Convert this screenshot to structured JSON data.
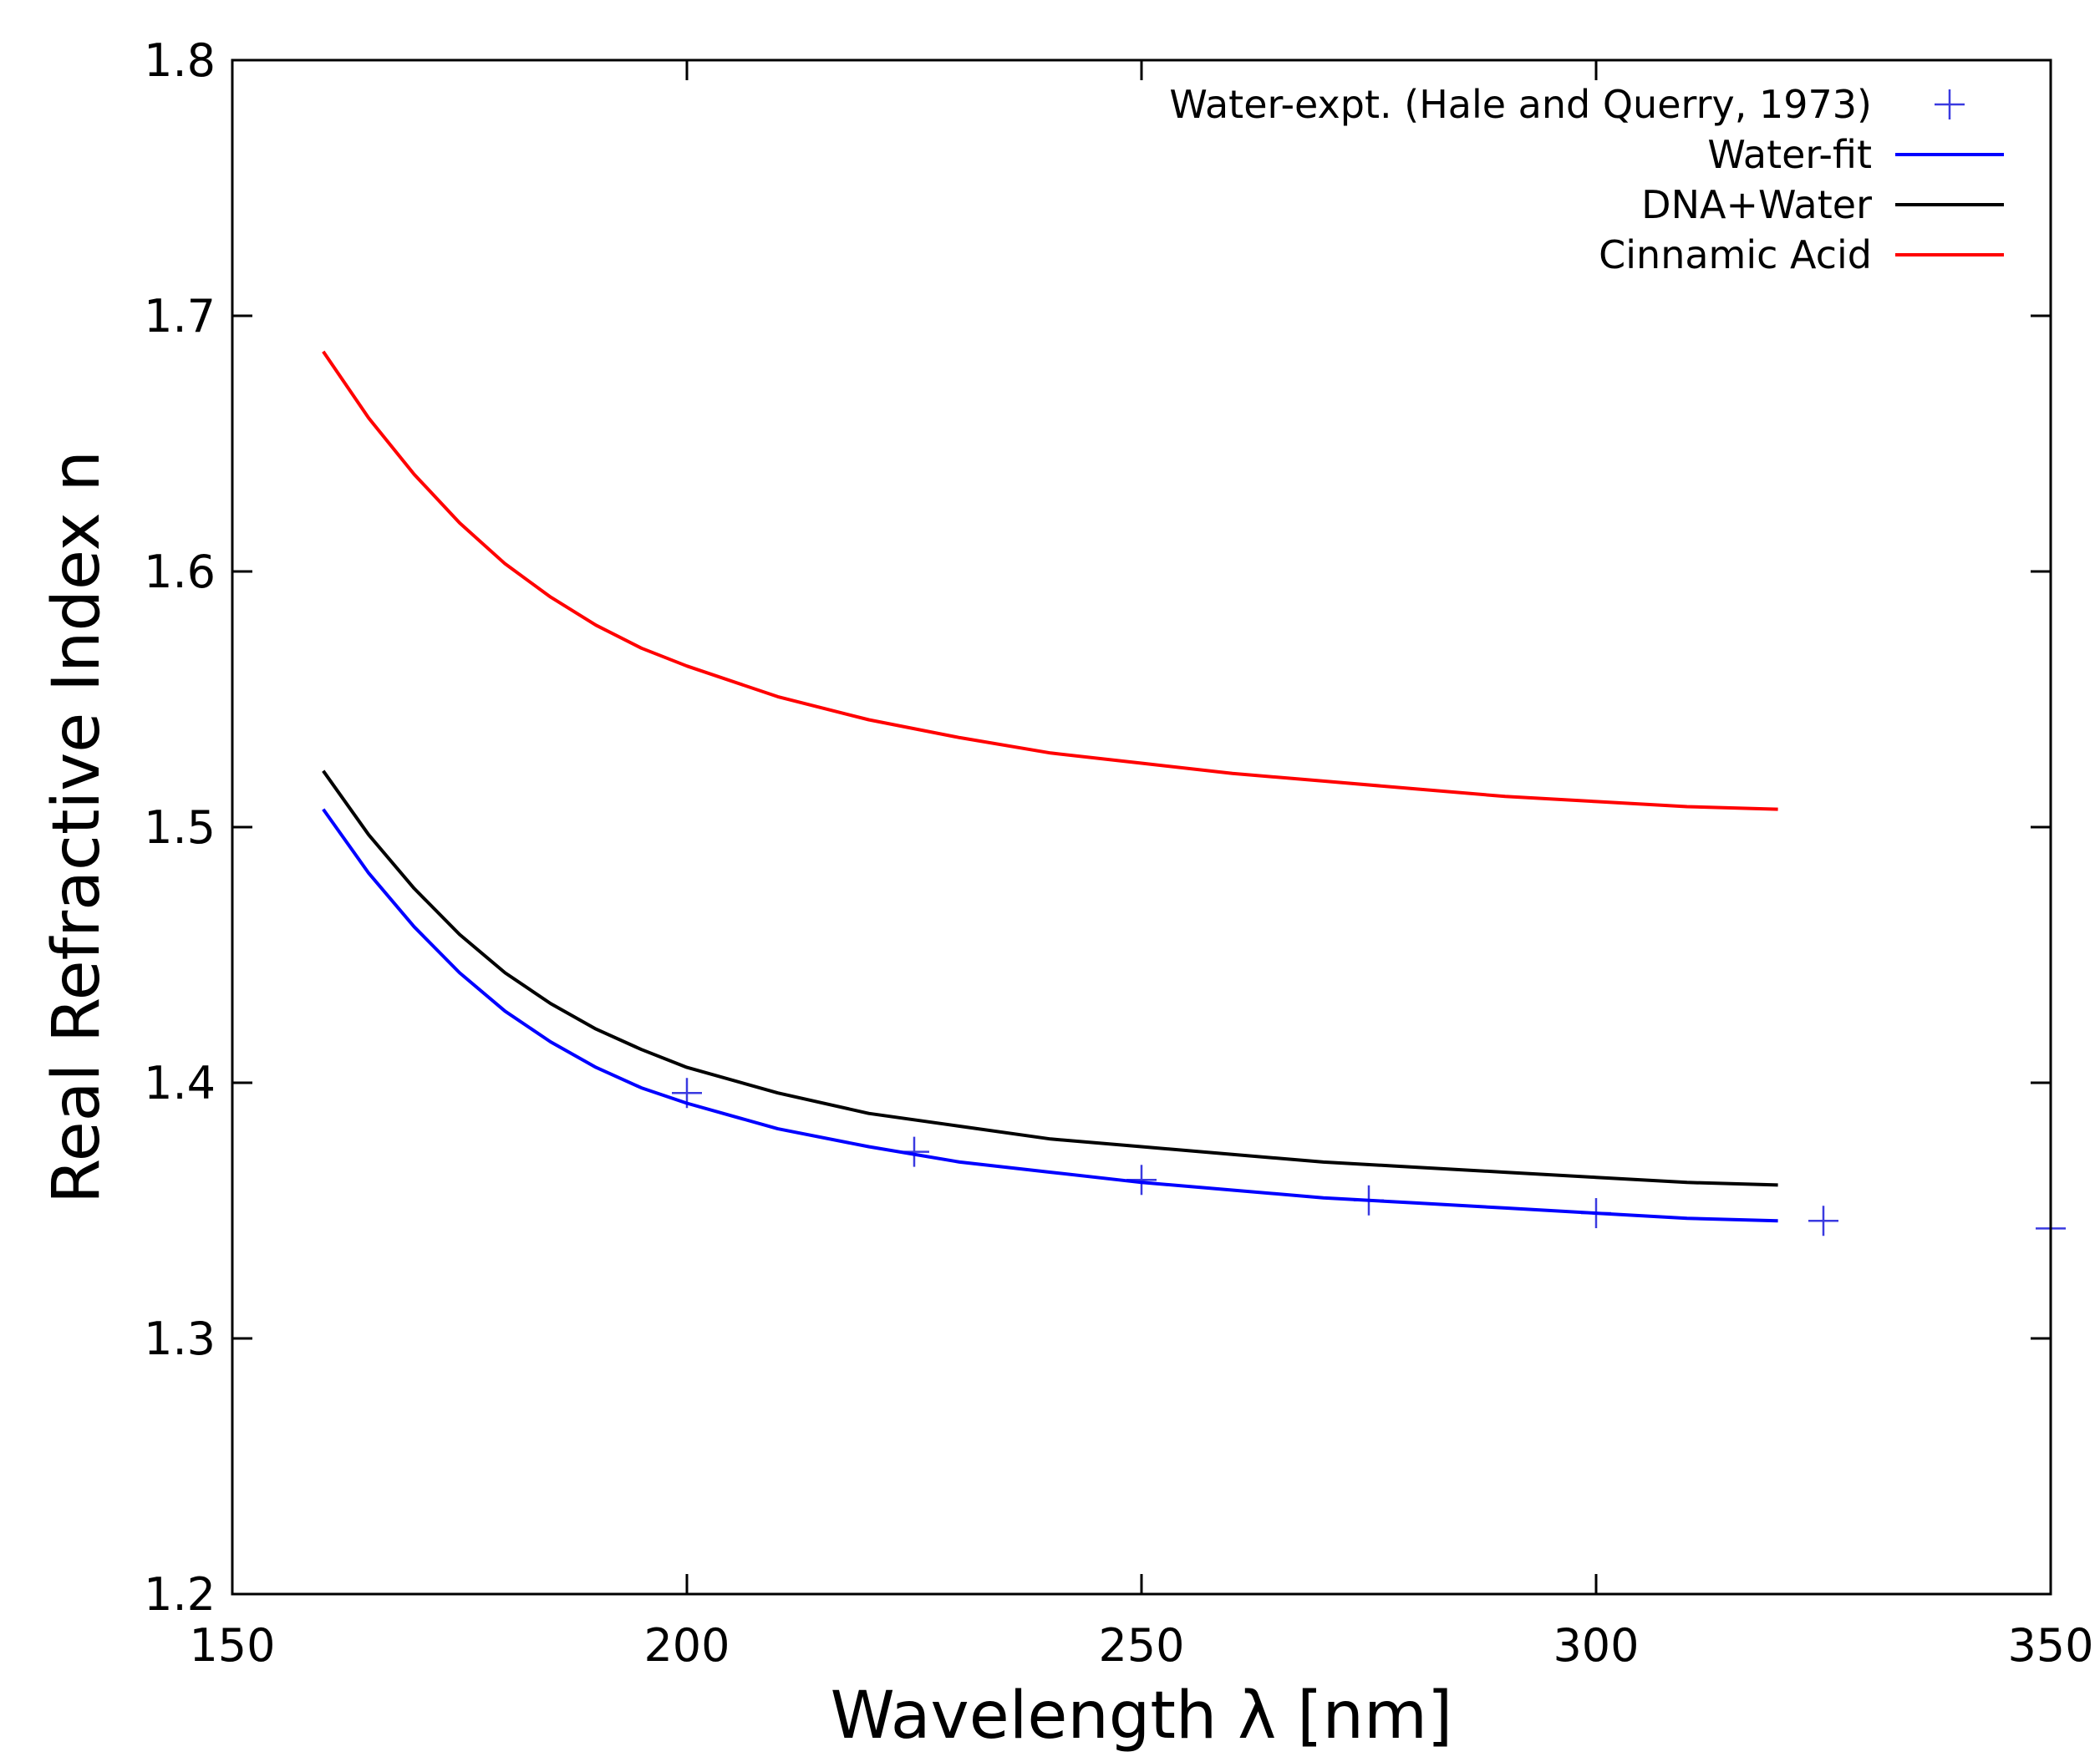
{
  "chart_data": {
    "type": "line",
    "title": "",
    "xlabel": "Wavelength λ [nm]",
    "ylabel": "Real Refractive Index n",
    "xlim": [
      150,
      350
    ],
    "ylim": [
      1.2,
      1.8
    ],
    "grid": false,
    "legend_position": "top-right",
    "x_ticks": [
      "150",
      "200",
      "250",
      "300",
      "350"
    ],
    "y_ticks": [
      "1.2",
      "1.3",
      "1.4",
      "1.5",
      "1.6",
      "1.7",
      "1.8"
    ],
    "x_tick_values": [
      150,
      200,
      250,
      300,
      350
    ],
    "y_tick_values": [
      1.2,
      1.3,
      1.4,
      1.5,
      1.6,
      1.7,
      1.8
    ],
    "series": [
      {
        "name": "Water-expt. (Hale and Querry, 1973)",
        "style": "points",
        "marker": "plus",
        "color": "#3a3ae0",
        "x": [
          200,
          225,
          250,
          275,
          300,
          325,
          350
        ],
        "y": [
          1.396,
          1.373,
          1.362,
          1.354,
          1.349,
          1.346,
          1.343
        ]
      },
      {
        "name": "Water-fit",
        "style": "line",
        "color": "#0000ff",
        "x": [
          160,
          165,
          170,
          175,
          180,
          185,
          190,
          195,
          200,
          210,
          220,
          230,
          240,
          250,
          260,
          270,
          280,
          290,
          300,
          310,
          320
        ],
        "y": [
          1.507,
          1.482,
          1.461,
          1.443,
          1.428,
          1.416,
          1.406,
          1.398,
          1.392,
          1.382,
          1.375,
          1.369,
          1.365,
          1.361,
          1.358,
          1.355,
          1.353,
          1.351,
          1.349,
          1.347,
          1.346
        ]
      },
      {
        "name": "DNA+Water",
        "style": "line",
        "color": "#000000",
        "x": [
          160,
          165,
          170,
          175,
          180,
          185,
          190,
          195,
          200,
          210,
          220,
          230,
          240,
          250,
          260,
          270,
          280,
          290,
          300,
          310,
          320
        ],
        "y": [
          1.522,
          1.497,
          1.476,
          1.458,
          1.443,
          1.431,
          1.421,
          1.413,
          1.406,
          1.396,
          1.388,
          1.383,
          1.378,
          1.375,
          1.372,
          1.369,
          1.367,
          1.365,
          1.363,
          1.361,
          1.36
        ]
      },
      {
        "name": "Cinnamic Acid",
        "style": "line",
        "color": "#ff0000",
        "x": [
          160,
          165,
          170,
          175,
          180,
          185,
          190,
          195,
          200,
          210,
          220,
          230,
          240,
          250,
          260,
          270,
          280,
          290,
          300,
          310,
          320
        ],
        "y": [
          1.686,
          1.66,
          1.638,
          1.619,
          1.603,
          1.59,
          1.579,
          1.57,
          1.563,
          1.551,
          1.542,
          1.535,
          1.529,
          1.525,
          1.521,
          1.518,
          1.515,
          1.512,
          1.51,
          1.508,
          1.507
        ]
      }
    ]
  }
}
